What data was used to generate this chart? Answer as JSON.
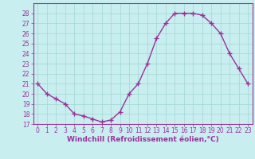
{
  "x": [
    0,
    1,
    2,
    3,
    4,
    5,
    6,
    7,
    8,
    9,
    10,
    11,
    12,
    13,
    14,
    15,
    16,
    17,
    18,
    19,
    20,
    21,
    22,
    23
  ],
  "y": [
    21.0,
    20.0,
    19.5,
    19.0,
    18.0,
    17.8,
    17.5,
    17.2,
    17.4,
    18.2,
    20.0,
    21.0,
    23.0,
    25.5,
    27.0,
    28.0,
    28.0,
    28.0,
    27.8,
    27.0,
    26.0,
    24.0,
    22.5,
    21.0
  ],
  "line_color": "#993399",
  "marker": "+",
  "marker_size": 4,
  "marker_lw": 1.0,
  "line_width": 1.0,
  "bg_color": "#c8eef0",
  "grid_color": "#a0d8d0",
  "xlabel": "Windchill (Refroidissement éolien,°C)",
  "ylim": [
    17,
    29
  ],
  "xlim": [
    -0.5,
    23.5
  ],
  "yticks": [
    17,
    18,
    19,
    20,
    21,
    22,
    23,
    24,
    25,
    26,
    27,
    28
  ],
  "xticks": [
    0,
    1,
    2,
    3,
    4,
    5,
    6,
    7,
    8,
    9,
    10,
    11,
    12,
    13,
    14,
    15,
    16,
    17,
    18,
    19,
    20,
    21,
    22,
    23
  ],
  "axis_color": "#993399",
  "tick_color": "#993399",
  "label_color": "#993399",
  "font_size_label": 6.5,
  "font_size_tick": 5.5
}
